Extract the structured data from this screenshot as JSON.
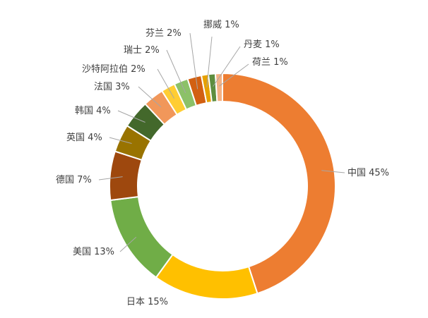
{
  "chart_data": {
    "type": "pie",
    "donut": true,
    "title": "",
    "legend": "none",
    "slices": [
      {
        "label": "中国 45%",
        "value": 45,
        "color": "#ED7D31"
      },
      {
        "label": "日本 15%",
        "value": 15,
        "color": "#FFC000"
      },
      {
        "label": "美国 13%",
        "value": 13,
        "color": "#70AD47"
      },
      {
        "label": "德国 7%",
        "value": 7,
        "color": "#9E480E"
      },
      {
        "label": "英国 4%",
        "value": 4,
        "color": "#997300"
      },
      {
        "label": "韩国 4%",
        "value": 4,
        "color": "#43682B"
      },
      {
        "label": "法国 3%",
        "value": 3,
        "color": "#F1975A"
      },
      {
        "label": "沙特阿拉伯 2%",
        "value": 2,
        "color": "#FFCD33"
      },
      {
        "label": "瑞士 2%",
        "value": 2,
        "color": "#8CC168"
      },
      {
        "label": "芬兰 2%",
        "value": 2,
        "color": "#D26012"
      },
      {
        "label": "挪威 1%",
        "value": 1,
        "color": "#E6A100"
      },
      {
        "label": "丹麦 1%",
        "value": 1,
        "color": "#5E8E3F"
      },
      {
        "label": "荷兰 1%",
        "value": 1,
        "color": "#F4B183"
      }
    ]
  }
}
